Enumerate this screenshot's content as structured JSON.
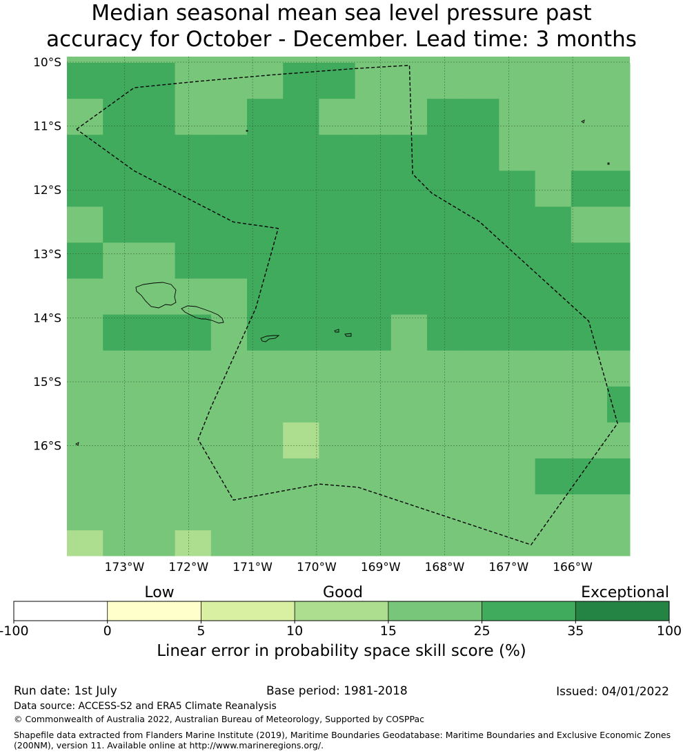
{
  "title": {
    "line1": "Median seasonal mean sea level pressure past",
    "line2": "accuracy for October - December. Lead time: 3 months"
  },
  "map": {
    "lat_labels": [
      "10°S",
      "11°S",
      "12°S",
      "13°S",
      "14°S",
      "15°S",
      "16°S"
    ],
    "lon_labels": [
      "173°W",
      "172°W",
      "171°W",
      "170°W",
      "169°W",
      "168°W",
      "167°W",
      "166°W"
    ],
    "lon_range": [
      -173.9,
      -165.2
    ],
    "lat_range": [
      -17.8,
      -10.0
    ],
    "grid_step_deg": 0.5625,
    "skill_grid_rows_top_to_bottom": [
      "DDDLLLDDLLLLLLLL",
      "LDDLLDDLLLDDLLLL",
      "DDDDDDDDDDDDLLLL",
      "DDDDDDDDDDDDDLDD",
      "LDDDDDDDDDDDDDLL",
      "DLLDDDDDDDDDDDDD",
      "LLLLLDDDDDDDDDDD",
      "LDDDLDDDDLDDDDDD",
      "LLLLLLLLLLLLLLLL",
      "LLLLLLLLLLLLLLLD",
      "LLLLLLMLLLLLLLLL",
      "LLLLLLLLLLLLLDDD",
      "LLLLLLLLLLLLLLLL",
      "MLLMLLLLLLLLLLLL"
    ],
    "skill_key": {
      "M": "10-15",
      "L": "15-25",
      "D": "25-35"
    },
    "eez_boundary_lonlat": [
      [
        -173.75,
        -11.05
      ],
      [
        -172.85,
        -10.4
      ],
      [
        -171.85,
        -10.3
      ],
      [
        -170.7,
        -10.2
      ],
      [
        -169.4,
        -10.1
      ],
      [
        -168.55,
        -10.05
      ],
      [
        -168.5,
        -11.75
      ],
      [
        -168.2,
        -12.05
      ],
      [
        -167.45,
        -12.5
      ],
      [
        -165.75,
        -14.05
      ],
      [
        -165.3,
        -15.65
      ],
      [
        -166.65,
        -17.55
      ],
      [
        -169.35,
        -16.65
      ],
      [
        -169.95,
        -16.6
      ],
      [
        -171.3,
        -16.85
      ],
      [
        -171.85,
        -15.9
      ],
      [
        -171.65,
        -15.4
      ],
      [
        -170.95,
        -13.85
      ],
      [
        -170.6,
        -12.6
      ],
      [
        -171.3,
        -12.5
      ],
      [
        -172.85,
        -11.7
      ],
      [
        -173.75,
        -11.05
      ]
    ]
  },
  "colorbar": {
    "category_labels": [
      "Low",
      "Good",
      "Exceptional"
    ],
    "ticks": [
      "-100",
      "0",
      "5",
      "10",
      "15",
      "25",
      "35",
      "100"
    ],
    "colors": [
      "#ffffff",
      "#ffffcc",
      "#d9f0a3",
      "#addd8e",
      "#78c679",
      "#41ab5d",
      "#238443"
    ],
    "caption": "Linear error in probability space skill score (%)"
  },
  "footer": {
    "run_date": "Run date: 1st July",
    "base_period": "Base period: 1981-2018",
    "issued": "Issued: 04/01/2022",
    "data_source": "Data source: ACCESS-S2 and ERA5 Climate Reanalysis",
    "copyright": "© Commonwealth of Australia 2022, Australian Bureau of Meteorology, Supported by COSPPac",
    "shapefile_line1": "Shapefile data extracted from Flanders Marine Institute (2019), Maritime Boundaries Geodatabase: Maritime Boundaries and Exclusive Economic Zones",
    "shapefile_line2": "(200NM), version 11. Available online at http://www.marineregions.org/."
  }
}
